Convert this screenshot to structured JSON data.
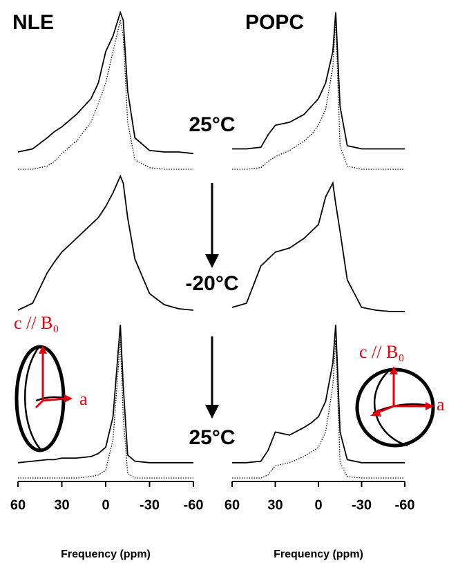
{
  "chart_data": [
    {
      "type": "line",
      "title": "NLE",
      "x_label": "Frequency (ppm)",
      "x": [
        60,
        50,
        40,
        35,
        30,
        20,
        10,
        5,
        0,
        -5,
        -10,
        -12,
        -15,
        -20,
        -30,
        -40,
        -50,
        -60
      ],
      "xlim": [
        60,
        -60
      ],
      "xticks": [
        60,
        30,
        0,
        -30,
        -60
      ],
      "ylim": [
        0,
        100
      ],
      "panels": [
        {
          "series": [
            {
              "color": "#000000",
              "dash": "solid",
              "values": [
                11,
                13,
                20,
                24,
                27,
                35,
                45,
                55,
                75,
                85,
                100,
                95,
                50,
                20,
                12,
                11,
                11,
                10
              ]
            },
            {
              "color": "#000000",
              "dash": "dotted",
              "values": [
                0,
                0,
                2,
                5,
                10,
                18,
                30,
                42,
                55,
                75,
                95,
                85,
                30,
                6,
                1,
                0,
                0,
                0
              ]
            }
          ]
        },
        {
          "series": [
            {
              "color": "#000000",
              "dash": "solid",
              "values": [
                3,
                8,
                30,
                38,
                45,
                55,
                65,
                70,
                78,
                88,
                100,
                95,
                70,
                40,
                15,
                7,
                4,
                3
              ]
            }
          ]
        },
        {
          "series": [
            {
              "color": "#000000",
              "dash": "solid",
              "values": [
                10,
                11,
                12,
                12,
                13,
                13,
                14,
                16,
                20,
                40,
                100,
                60,
                15,
                11,
                10,
                10,
                10,
                10
              ]
            },
            {
              "color": "#000000",
              "dash": "dotted",
              "values": [
                0,
                0,
                0,
                0,
                0,
                0,
                1,
                2,
                5,
                25,
                90,
                40,
                3,
                0,
                0,
                0,
                0,
                0
              ]
            }
          ]
        }
      ]
    },
    {
      "type": "line",
      "title": "POPC",
      "x_label": "Frequency (ppm)",
      "x": [
        60,
        50,
        40,
        35,
        30,
        20,
        10,
        5,
        0,
        -5,
        -10,
        -12,
        -15,
        -20,
        -30,
        -40,
        -50,
        -60
      ],
      "xlim": [
        60,
        -60
      ],
      "xticks": [
        60,
        30,
        0,
        -30,
        -60
      ],
      "ylim": [
        0,
        100
      ],
      "panels": [
        {
          "series": [
            {
              "color": "#000000",
              "dash": "solid",
              "values": [
                13,
                13,
                14,
                22,
                28,
                30,
                35,
                40,
                45,
                55,
                75,
                100,
                40,
                15,
                13,
                13,
                13,
                13
              ]
            },
            {
              "color": "#000000",
              "dash": "dotted",
              "values": [
                0,
                0,
                1,
                5,
                8,
                12,
                18,
                22,
                28,
                38,
                65,
                95,
                15,
                2,
                0,
                0,
                0,
                0
              ]
            }
          ]
        },
        {
          "series": [
            {
              "color": "#000000",
              "dash": "solid",
              "values": [
                5,
                8,
                35,
                40,
                45,
                48,
                55,
                60,
                65,
                85,
                95,
                80,
                60,
                25,
                5,
                3,
                2,
                2
              ]
            }
          ]
        },
        {
          "series": [
            {
              "color": "#000000",
              "dash": "solid",
              "values": [
                10,
                10,
                11,
                18,
                30,
                28,
                33,
                36,
                40,
                50,
                75,
                100,
                30,
                12,
                10,
                10,
                10,
                10
              ]
            },
            {
              "color": "#000000",
              "dash": "dotted",
              "values": [
                0,
                0,
                0,
                2,
                8,
                10,
                14,
                17,
                20,
                30,
                60,
                90,
                10,
                1,
                0,
                0,
                0,
                0
              ]
            }
          ]
        }
      ]
    }
  ],
  "annotations": [
    "25°C",
    "-20°C",
    "25°C"
  ],
  "insets": [
    {
      "axis_c": "c // B₀",
      "axis_a": "a"
    },
    {
      "axis_c": "c // B₀",
      "axis_a": "a"
    }
  ]
}
